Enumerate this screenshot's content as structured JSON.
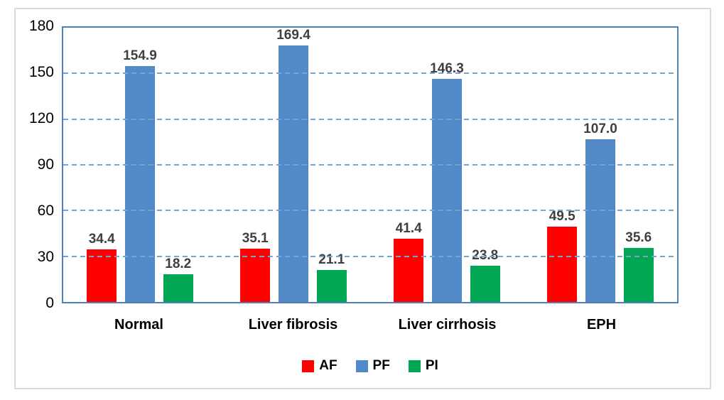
{
  "chart_data": {
    "type": "bar",
    "title": "",
    "categories": [
      "Normal",
      "Liver fibrosis",
      "Liver cirrhosis",
      "EPH"
    ],
    "series": [
      {
        "name": "AF",
        "color": "#ff0000",
        "values": [
          34.4,
          35.1,
          41.4,
          49.5
        ]
      },
      {
        "name": "PF",
        "color": "#5289c7",
        "values": [
          154.9,
          169.4,
          146.3,
          107.0
        ]
      },
      {
        "name": "PI",
        "color": "#00a651",
        "values": [
          18.2,
          21.1,
          23.8,
          35.6
        ]
      }
    ],
    "xlabel": "",
    "ylabel": "",
    "ylim": [
      0,
      180
    ],
    "yticks": [
      0,
      30,
      60,
      90,
      120,
      150,
      180
    ],
    "value_decimals": 1,
    "grid": "horizontal-dashed",
    "legend_position": "bottom",
    "colors": {
      "axis_border": "#4e80bc",
      "gridline": "#7aa3d3",
      "data_label": "#3f3f3f",
      "tick_label": "#000000",
      "category_label": "#000000",
      "figure_border": "#d9d9d9",
      "background": "#ffffff"
    }
  }
}
